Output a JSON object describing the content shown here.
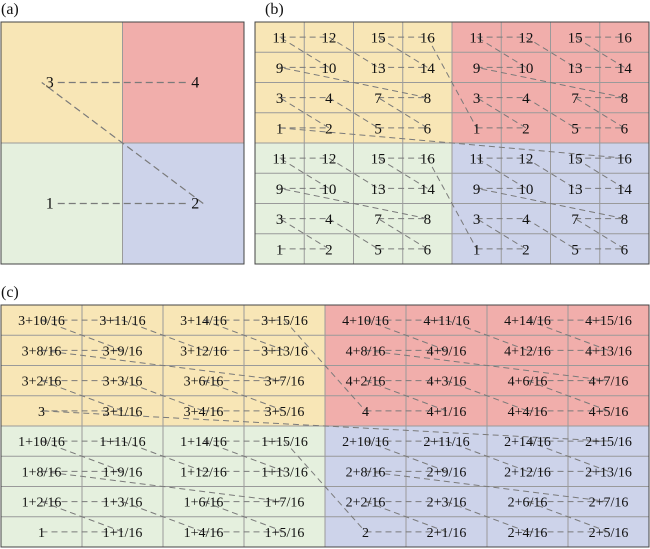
{
  "panels": {
    "a": {
      "label": "(a)",
      "cells": [
        "3",
        "4",
        "1",
        "2"
      ],
      "path": [
        "1",
        "2",
        "3",
        "4"
      ]
    },
    "b": {
      "label": "(b)",
      "rows": [
        [
          "11",
          "12",
          "15",
          "16",
          "11",
          "12",
          "15",
          "16"
        ],
        [
          "9",
          "10",
          "13",
          "14",
          "9",
          "10",
          "13",
          "14"
        ],
        [
          "3",
          "4",
          "7",
          "8",
          "3",
          "4",
          "7",
          "8"
        ],
        [
          "1",
          "2",
          "5",
          "6",
          "1",
          "2",
          "5",
          "6"
        ],
        [
          "11",
          "12",
          "15",
          "16",
          "11",
          "12",
          "15",
          "16"
        ],
        [
          "9",
          "10",
          "13",
          "14",
          "9",
          "10",
          "13",
          "14"
        ],
        [
          "3",
          "4",
          "7",
          "8",
          "3",
          "4",
          "7",
          "8"
        ],
        [
          "1",
          "2",
          "5",
          "6",
          "1",
          "2",
          "5",
          "6"
        ]
      ]
    },
    "c": {
      "label": "(c)",
      "rows": [
        [
          "3+10/16",
          "3+11/16",
          "3+14/16",
          "3+15/16",
          "4+10/16",
          "4+11/16",
          "4+14/16",
          "4+15/16"
        ],
        [
          "3+8/16",
          "3+9/16",
          "3+12/16",
          "3+13/16",
          "4+8/16",
          "4+9/16",
          "4+12/16",
          "4+13/16"
        ],
        [
          "3+2/16",
          "3+3/16",
          "3+6/16",
          "3+7/16",
          "4+2/16",
          "4+3/16",
          "4+6/16",
          "4+7/16"
        ],
        [
          "3",
          "3+1/16",
          "3+4/16",
          "3+5/16",
          "4",
          "4+1/16",
          "4+4/16",
          "4+5/16"
        ],
        [
          "1+10/16",
          "1+11/16",
          "1+14/16",
          "1+15/16",
          "2+10/16",
          "2+11/16",
          "2+14/16",
          "2+15/16"
        ],
        [
          "1+8/16",
          "1+9/16",
          "1+12/16",
          "1+13/16",
          "2+8/16",
          "2+9/16",
          "2+12/16",
          "2+13/16"
        ],
        [
          "1+2/16",
          "1+3/16",
          "1+6/16",
          "1+7/16",
          "2+2/16",
          "2+3/16",
          "2+6/16",
          "2+7/16"
        ],
        [
          "1",
          "1+1/16",
          "1+4/16",
          "1+5/16",
          "2",
          "2+1/16",
          "2+4/16",
          "2+5/16"
        ]
      ]
    }
  },
  "colors": {
    "quadrant_top_left": "#f8e6b6",
    "quadrant_top_right": "#f1aeab",
    "quadrant_bottom_left": "#e5f0de",
    "quadrant_bottom_right": "#cdd3ea",
    "grid_line": "#9a9a9a",
    "border": "#444444",
    "path_line": "#7a7a7a",
    "text": "#111111"
  }
}
